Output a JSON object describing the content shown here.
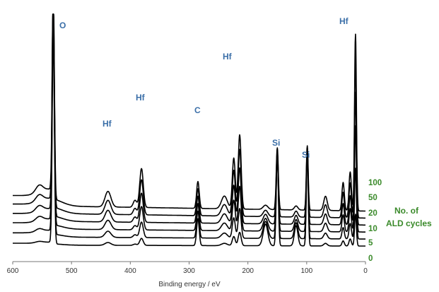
{
  "chart_data": {
    "type": "line",
    "title": "",
    "xlabel": "Binding energy / eV",
    "ylabel": "",
    "xlim": [
      600,
      0
    ],
    "x_reversed": true,
    "xticks": [
      600,
      500,
      400,
      300,
      200,
      100,
      0
    ],
    "grid": false,
    "legend_title": [
      "No. of",
      "ALD cycles"
    ],
    "series": [
      {
        "name": "0",
        "baseline": 0.0,
        "amp": 0.18
      },
      {
        "name": "5",
        "baseline": 0.06,
        "amp": 0.4
      },
      {
        "name": "10",
        "baseline": 0.12,
        "amp": 0.6
      },
      {
        "name": "20",
        "baseline": 0.18,
        "amp": 0.75
      },
      {
        "name": "50",
        "baseline": 0.24,
        "amp": 0.9
      },
      {
        "name": "100",
        "baseline": 0.3,
        "amp": 1.0
      }
    ],
    "peaks": [
      {
        "label": "O",
        "energy": 531
      },
      {
        "label": "Hf",
        "energy": 438
      },
      {
        "label": "Hf",
        "energy": 381
      },
      {
        "label": "C",
        "energy": 285
      },
      {
        "label": "Hf",
        "energy": 214
      },
      {
        "label": "Si",
        "energy": 150
      },
      {
        "label": "Si",
        "energy": 99
      },
      {
        "label": "Hf",
        "energy": 17
      }
    ]
  }
}
